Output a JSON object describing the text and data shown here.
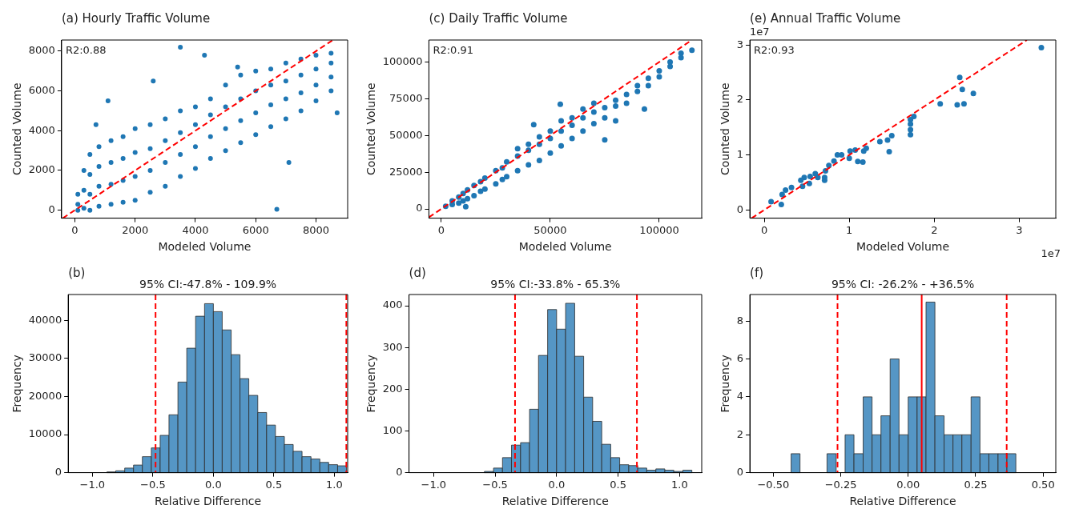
{
  "chart_data": [
    {
      "type": "scatter",
      "title": "(a) Hourly Traffic Volume",
      "xlabel": "Modeled Volume",
      "ylabel": "Counted Volume",
      "annotations": [
        "R2:0.88"
      ],
      "xlim": [
        -440,
        9050
      ],
      "ylim": [
        -400,
        8560
      ],
      "xticks": [
        0,
        2000,
        4000,
        6000,
        8000
      ],
      "yticks": [
        0,
        2000,
        4000,
        6000,
        8000
      ],
      "series": [
        {
          "type": "scatter",
          "color": "#1f77b4",
          "marker": "circle",
          "x": [
            100,
            100,
            100,
            300,
            300,
            300,
            500,
            500,
            500,
            500,
            800,
            800,
            800,
            800,
            1200,
            1200,
            1200,
            1200,
            1600,
            1600,
            1600,
            1600,
            2000,
            2000,
            2000,
            2000,
            2500,
            2500,
            2500,
            2500,
            3000,
            3000,
            3000,
            3000,
            3500,
            3500,
            3500,
            3500,
            4000,
            4000,
            4000,
            4000,
            4500,
            4500,
            4500,
            4500,
            5000,
            5000,
            5000,
            5000,
            5500,
            5500,
            5500,
            5500,
            6000,
            6000,
            6000,
            6000,
            6500,
            6500,
            6500,
            6500,
            7000,
            7000,
            7000,
            7000,
            7500,
            7500,
            7500,
            7500,
            8000,
            8000,
            8000,
            8000,
            8500,
            8500,
            8500,
            8500,
            3500,
            4300,
            6700,
            1100,
            700,
            2600,
            5400,
            7100,
            8700
          ],
          "values": [
            0,
            300,
            800,
            100,
            1000,
            2000,
            0,
            800,
            1800,
            2800,
            200,
            1200,
            2200,
            3200,
            300,
            1300,
            2400,
            3500,
            400,
            1500,
            2600,
            3700,
            500,
            1700,
            2900,
            4100,
            900,
            2000,
            3100,
            4300,
            1200,
            2400,
            3500,
            4600,
            1700,
            2800,
            3900,
            5000,
            2100,
            3200,
            4300,
            5200,
            2600,
            3700,
            4800,
            5600,
            3000,
            4100,
            5200,
            6300,
            3400,
            4500,
            5600,
            6800,
            3800,
            4900,
            6000,
            7000,
            4200,
            5300,
            6300,
            7100,
            4600,
            5600,
            6500,
            7400,
            5000,
            5900,
            6800,
            7600,
            5500,
            6300,
            7100,
            7800,
            6000,
            6700,
            7400,
            7900,
            8200,
            7800,
            50,
            5500,
            4300,
            6500,
            7200,
            2400,
            4900
          ]
        },
        {
          "type": "line",
          "color": "#ff0000",
          "marker": "none",
          "line_style": "dashed",
          "x": [
            -400,
            8560
          ],
          "values": [
            -400,
            8560
          ]
        }
      ]
    },
    {
      "type": "scatter",
      "title": "(c) Daily Traffic Volume",
      "xlabel": "Modeled Volume",
      "ylabel": "Counted Volume",
      "annotations": [
        "R2:0.91"
      ],
      "xlim": [
        -5700,
        119500
      ],
      "ylim": [
        -6300,
        115000
      ],
      "xticks": [
        0,
        50000,
        100000
      ],
      "yticks": [
        0,
        25000,
        50000,
        75000,
        100000
      ],
      "series": [
        {
          "type": "scatter",
          "color": "#1f77b4",
          "marker": "circle",
          "x": [
            2000,
            5000,
            5000,
            8000,
            8000,
            10000,
            10000,
            12000,
            12000,
            15000,
            15000,
            18000,
            18000,
            20000,
            20000,
            25000,
            25000,
            28000,
            28000,
            30000,
            30000,
            35000,
            35000,
            35000,
            40000,
            40000,
            40000,
            45000,
            45000,
            45000,
            50000,
            50000,
            50000,
            55000,
            55000,
            55000,
            60000,
            60000,
            60000,
            65000,
            65000,
            65000,
            70000,
            70000,
            70000,
            75000,
            75000,
            80000,
            80000,
            85000,
            85000,
            90000,
            90000,
            95000,
            95000,
            100000,
            100000,
            105000,
            105000,
            110000,
            110000,
            115000,
            54600,
            42400,
            93200,
            75000,
            11200,
            80000
          ],
          "values": [
            1800,
            3000,
            5500,
            4000,
            8000,
            5500,
            10500,
            7000,
            13000,
            9000,
            16000,
            12000,
            18500,
            13500,
            21000,
            17000,
            26000,
            20000,
            28000,
            22000,
            32000,
            26000,
            36000,
            41000,
            30000,
            40000,
            44000,
            33000,
            44000,
            49000,
            38000,
            48000,
            53000,
            43000,
            53000,
            60000,
            48000,
            57000,
            62000,
            53000,
            62000,
            68000,
            58000,
            66000,
            72000,
            62000,
            69000,
            70000,
            74000,
            72000,
            78000,
            80000,
            84000,
            84000,
            89000,
            90000,
            94000,
            97000,
            100000,
            103000,
            106000,
            108000,
            71300,
            57400,
            68000,
            47000,
            1500,
            60000
          ]
        },
        {
          "type": "line",
          "color": "#ff0000",
          "marker": "none",
          "line_style": "dashed",
          "x": [
            -5700,
            115000
          ],
          "values": [
            -5700,
            115000
          ]
        }
      ]
    },
    {
      "type": "scatter",
      "title": "(e) Annual Traffic Volume",
      "xlabel": "Modeled Volume",
      "ylabel": "Counted Volume",
      "annotations": [
        "R2:0.93",
        "1e7",
        "1e7"
      ],
      "xlim": [
        -0.17,
        3.43
      ],
      "ylim": [
        -0.15,
        3.09
      ],
      "xticks": [
        0,
        1,
        2,
        3
      ],
      "yticks": [
        0,
        1,
        2,
        3
      ],
      "series": [
        {
          "type": "scatter",
          "color": "#1f77b4",
          "marker": "circle",
          "x": [
            3.26,
            2.3,
            2.33,
            2.46,
            2.07,
            2.27,
            2.35,
            1.76,
            1.72,
            1.72,
            1.72,
            1.72,
            1.5,
            1.45,
            1.36,
            1.47,
            1.2,
            1.17,
            1.16,
            1.1,
            1.07,
            1.01,
            1.0,
            0.91,
            0.86,
            0.82,
            0.76,
            0.72,
            0.71,
            0.71,
            0.63,
            0.6,
            0.54,
            0.53,
            0.47,
            0.43,
            0.45,
            0.32,
            0.25,
            0.21,
            0.2,
            0.08
          ],
          "values": [
            2.95,
            2.41,
            2.19,
            2.12,
            1.93,
            1.91,
            1.93,
            1.7,
            1.64,
            1.56,
            1.46,
            1.37,
            1.35,
            1.27,
            1.24,
            1.06,
            1.12,
            1.07,
            0.87,
            0.88,
            1.09,
            1.07,
            0.94,
            1.0,
            1.0,
            0.89,
            0.81,
            0.71,
            0.54,
            0.59,
            0.59,
            0.66,
            0.61,
            0.48,
            0.59,
            0.54,
            0.43,
            0.41,
            0.36,
            0.28,
            0.1,
            0.15
          ]
        },
        {
          "type": "line",
          "color": "#ff0000",
          "marker": "none",
          "line_style": "dashed",
          "x": [
            -0.15,
            3.09
          ],
          "values": [
            -0.15,
            3.09
          ]
        }
      ]
    },
    {
      "type": "histogram",
      "title": "(b)",
      "subtitle": "95% CI:-47.8% - 109.9%",
      "xlabel": "Relative Difference",
      "ylabel": "Frequency",
      "color": "#5596c5",
      "xlim": [
        -1.2,
        1.11
      ],
      "ylim": [
        0,
        46800
      ],
      "xticks": [
        {
          "value": -1,
          "label": "−1.0"
        },
        {
          "value": -0.5,
          "label": "−0.5"
        },
        {
          "value": 0,
          "label": "0.0"
        },
        {
          "value": 0.5,
          "label": "0.5"
        },
        {
          "value": 1,
          "label": "1.0"
        }
      ],
      "yticks": [
        0,
        10000,
        20000,
        30000,
        40000
      ],
      "bins": [
        -0.88,
        -0.807,
        -0.733,
        -0.66,
        -0.587,
        -0.513,
        -0.44,
        -0.367,
        -0.293,
        -0.22,
        -0.147,
        -0.073,
        0,
        0.073,
        0.147,
        0.22,
        0.293,
        0.367,
        0.44,
        0.513,
        0.587,
        0.66,
        0.733,
        0.807,
        0.88,
        0.953,
        1.027,
        1.1
      ],
      "values": [
        200,
        500,
        1200,
        2000,
        4200,
        6500,
        9800,
        15200,
        23800,
        32700,
        41100,
        44400,
        42300,
        37500,
        31000,
        24700,
        20300,
        15800,
        12500,
        9500,
        7400,
        5600,
        4200,
        3600,
        2700,
        2100,
        1800
      ],
      "ref_lines": [
        {
          "axis": "x",
          "value": -0.478,
          "color": "#ff0000",
          "line_style": "dashed"
        },
        {
          "axis": "x",
          "value": 1.099,
          "color": "#ff0000",
          "line_style": "dashed"
        }
      ]
    },
    {
      "type": "histogram",
      "title": "(d)",
      "subtitle": "95% CI:-33.8% - 65.3%",
      "xlabel": "Relative Difference",
      "ylabel": "Frequency",
      "color": "#5596c5",
      "xlim": [
        -1.2,
        1.18
      ],
      "ylim": [
        0,
        427
      ],
      "xticks": [
        {
          "value": -1,
          "label": "−1.0"
        },
        {
          "value": -0.5,
          "label": "−0.5"
        },
        {
          "value": 0,
          "label": "0.0"
        },
        {
          "value": 0.5,
          "label": "0.5"
        },
        {
          "value": 1,
          "label": "1.0"
        }
      ],
      "yticks": [
        0,
        100,
        200,
        300,
        400
      ],
      "bins": [
        -0.587,
        -0.513,
        -0.44,
        -0.367,
        -0.293,
        -0.22,
        -0.147,
        -0.073,
        0,
        0.073,
        0.147,
        0.22,
        0.293,
        0.367,
        0.44,
        0.513,
        0.587,
        0.66,
        0.733,
        0.807,
        0.88,
        0.953,
        1.027,
        1.1
      ],
      "values": [
        3,
        11,
        36,
        66,
        72,
        152,
        281,
        391,
        344,
        406,
        279,
        181,
        123,
        68,
        36,
        19,
        17,
        11,
        6,
        9,
        6,
        3,
        6
      ],
      "ref_lines": [
        {
          "axis": "x",
          "value": -0.338,
          "color": "#ff0000",
          "line_style": "dashed"
        },
        {
          "axis": "x",
          "value": 0.653,
          "color": "#ff0000",
          "line_style": "dashed"
        }
      ]
    },
    {
      "type": "histogram",
      "title": "(f)",
      "subtitle": "95% CI: -26.2% - +36.5%",
      "xlabel": "Relative Difference",
      "ylabel": "Frequency",
      "color": "#5596c5",
      "xlim": [
        -0.587,
        0.547
      ],
      "ylim": [
        0,
        9.4
      ],
      "xticks": [
        {
          "value": -0.5,
          "label": "−0.50"
        },
        {
          "value": -0.25,
          "label": "−0.25"
        },
        {
          "value": 0,
          "label": "0.00"
        },
        {
          "value": 0.25,
          "label": "0.25"
        },
        {
          "value": 0.5,
          "label": "0.50"
        }
      ],
      "yticks": [
        0,
        2,
        4,
        6,
        8
      ],
      "bins": [
        -0.434,
        -0.401,
        -0.301,
        -0.267,
        -0.234,
        -0.201,
        -0.167,
        -0.134,
        -0.101,
        -0.067,
        -0.034,
        0,
        0.033,
        0.066,
        0.099,
        0.133,
        0.166,
        0.199,
        0.233,
        0.266,
        0.299,
        0.333,
        0.366,
        0.399
      ],
      "values": [
        1,
        0,
        1,
        0,
        2,
        1,
        4,
        2,
        3,
        6,
        2,
        4,
        4,
        9,
        3,
        2,
        2,
        2,
        4,
        1,
        1,
        1,
        1
      ],
      "ref_lines": [
        {
          "axis": "x",
          "value": -0.262,
          "color": "#ff0000",
          "line_style": "dashed"
        },
        {
          "axis": "x",
          "value": 0.365,
          "color": "#ff0000",
          "line_style": "dashed"
        },
        {
          "axis": "x",
          "value": 0.05,
          "color": "#ff0000",
          "line_style": "solid"
        }
      ]
    }
  ]
}
